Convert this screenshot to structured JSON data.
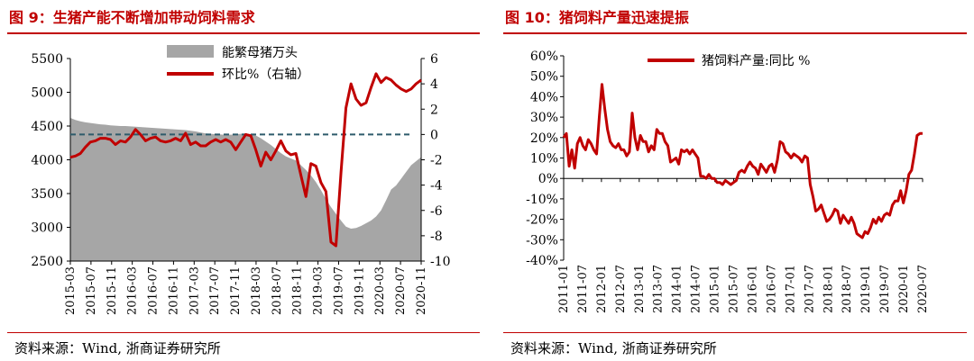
{
  "figures": [
    {
      "title": "图 9：生猪产能不断增加带动饲料需求",
      "source": "资料来源：Wind, 浙商证券研究所"
    },
    {
      "title": "图 10：猪饲料产量迅速提振",
      "source": "资料来源：Wind, 浙商证券研究所"
    }
  ],
  "chart_data": [
    {
      "type": "line",
      "title": "图 9：生猪产能不断增加带动饲料需求",
      "legend": [
        "能繁母猪万头",
        "环比%（右轴）"
      ],
      "legend_position": "top-center",
      "x_ticks": [
        "2015-03",
        "2015-07",
        "2015-11",
        "2016-03",
        "2016-07",
        "2016-11",
        "2017-03",
        "2017-07",
        "2017-11",
        "2018-03",
        "2018-07",
        "2018-11",
        "2019-03",
        "2019-07",
        "2019-11",
        "2020-03",
        "2020-07",
        "2020-11"
      ],
      "y_left": {
        "ylim": [
          2500,
          5500
        ],
        "ticks": [
          "2500",
          "3000",
          "3500",
          "4000",
          "4500",
          "5000",
          "5500"
        ]
      },
      "y_right": {
        "ylim": [
          -10,
          6
        ],
        "ticks": [
          "-10",
          "-8",
          "-6",
          "-4",
          "-2",
          "0",
          "2",
          "4",
          "6"
        ]
      },
      "reference_line": {
        "axis": "right",
        "value": 0,
        "style": "dashed"
      },
      "series": [
        {
          "name": "能繁母猪万头",
          "kind": "area",
          "axis": "left",
          "color": "#a6a6a6",
          "values": [
            4620,
            4590,
            4570,
            4555,
            4545,
            4535,
            4525,
            4520,
            4510,
            4505,
            4500,
            4500,
            4495,
            4490,
            4485,
            4480,
            4475,
            4470,
            4465,
            4460,
            4455,
            4450,
            4445,
            4440,
            4430,
            4420,
            4405,
            4390,
            4385,
            4380,
            4375,
            4370,
            4372,
            4378,
            4385,
            4390,
            4380,
            4360,
            4320,
            4270,
            4220,
            4160,
            4100,
            4050,
            4020,
            3990,
            3920,
            3850,
            3770,
            3670,
            3550,
            3420,
            3300,
            3200,
            3100,
            3010,
            2980,
            2990,
            3020,
            3060,
            3100,
            3160,
            3250,
            3400,
            3560,
            3620,
            3720,
            3820,
            3920,
            3980,
            4040
          ]
        },
        {
          "name": "环比%（右轴）",
          "kind": "line",
          "axis": "right",
          "color": "#c00000",
          "values": [
            -1.8,
            -1.7,
            -1.5,
            -1.0,
            -0.6,
            -0.5,
            -0.3,
            -0.3,
            -0.4,
            -0.8,
            -0.5,
            -0.6,
            -0.2,
            0.4,
            0.0,
            -0.5,
            -0.3,
            -0.2,
            -0.5,
            -0.6,
            -0.5,
            -0.3,
            -0.5,
            0.1,
            -0.8,
            -0.6,
            -0.9,
            -0.9,
            -0.6,
            -0.4,
            -0.6,
            -0.4,
            -0.6,
            -1.2,
            -0.6,
            0.0,
            -0.1,
            -1.2,
            -2.5,
            -1.4,
            -2.0,
            -1.3,
            -0.5,
            -1.3,
            -1.6,
            -1.5,
            -3.2,
            -4.9,
            -2.3,
            -2.5,
            -3.8,
            -4.5,
            -8.5,
            -8.8,
            -3.0,
            2.1,
            4.0,
            2.8,
            2.3,
            2.5,
            3.7,
            4.8,
            4.1,
            4.5,
            4.3,
            3.9,
            3.6,
            3.4,
            3.6,
            4.0,
            4.3
          ]
        }
      ]
    },
    {
      "type": "line",
      "title": "图 10：猪饲料产量迅速提振",
      "legend": [
        "猪饲料产量:同比 %"
      ],
      "legend_position": "top-center",
      "x_ticks": [
        "2011-01",
        "2011-07",
        "2012-01",
        "2012-07",
        "2013-01",
        "2013-07",
        "2014-01",
        "2014-07",
        "2015-01",
        "2015-07",
        "2016-01",
        "2016-07",
        "2017-01",
        "2017-07",
        "2018-01",
        "2018-07",
        "2019-01",
        "2019-07",
        "2020-01",
        "2020-07"
      ],
      "y_axis": {
        "ylim": [
          -40,
          60
        ],
        "ticks": [
          "-40%",
          "-30%",
          "-20%",
          "-10%",
          "0%",
          "10%",
          "20%",
          "30%",
          "40%",
          "50%",
          "60%"
        ]
      },
      "series": [
        {
          "name": "猪饲料产量:同比 %",
          "kind": "line",
          "color": "#c00000",
          "values": [
            20,
            22,
            6,
            14,
            5,
            17,
            20,
            16,
            14,
            19,
            17,
            14,
            12,
            30,
            46,
            34,
            24,
            18,
            16,
            15,
            17,
            14,
            14,
            11,
            13,
            32,
            20,
            14,
            21,
            18,
            18,
            13,
            16,
            14,
            24,
            22,
            22,
            18,
            16,
            8,
            9,
            10,
            7,
            14,
            13,
            14,
            12,
            14,
            12,
            10,
            1,
            1,
            0,
            2,
            0,
            0,
            -2,
            -2,
            -3,
            -1,
            -2,
            -3,
            -2,
            -1,
            3,
            4,
            3,
            6,
            8,
            6,
            5,
            2,
            7,
            5,
            3,
            6,
            7,
            3,
            9,
            18,
            17,
            13,
            12,
            10,
            12,
            11,
            10,
            8,
            11,
            10,
            -3,
            -9,
            -16,
            -15,
            -13,
            -17,
            -21,
            -20,
            -18,
            -15,
            -16,
            -22,
            -18,
            -20,
            -22,
            -19,
            -22,
            -27,
            -28,
            -29,
            -26,
            -27,
            -24,
            -20,
            -22,
            -19,
            -21,
            -18,
            -17,
            -18,
            -13,
            -11,
            -11,
            -6,
            -12,
            -6,
            2,
            4,
            12,
            21,
            22,
            22
          ]
        }
      ]
    }
  ]
}
